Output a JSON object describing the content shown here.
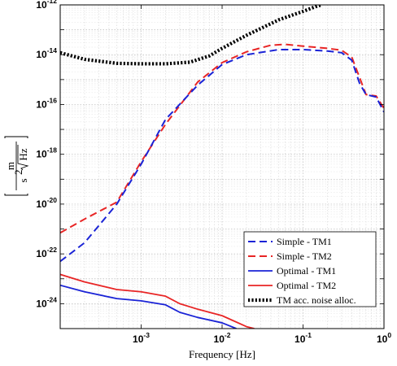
{
  "chart_data": {
    "type": "line",
    "xlabel": "Frequency [Hz]",
    "ylabel": {
      "numerator": "m",
      "denominator_prefix": "s",
      "denominator_sup": "2",
      "denominator_root": "Hz"
    },
    "xscale": "log",
    "yscale": "log",
    "xlim": [
      0.0001,
      1
    ],
    "ylim": [
      1e-25,
      1e-12
    ],
    "grid": true,
    "legend_position": "bottom-right",
    "x_ticks": [
      {
        "value": 0.001,
        "base": "10",
        "exp": "-3"
      },
      {
        "value": 0.01,
        "base": "10",
        "exp": "-2"
      },
      {
        "value": 0.1,
        "base": "10",
        "exp": "-1"
      },
      {
        "value": 1,
        "base": "10",
        "exp": "0"
      }
    ],
    "y_ticks": [
      {
        "value": 1e-24,
        "base": "10",
        "exp": "-24"
      },
      {
        "value": 1e-22,
        "base": "10",
        "exp": "-22"
      },
      {
        "value": 1e-20,
        "base": "10",
        "exp": "-20"
      },
      {
        "value": 1e-18,
        "base": "10",
        "exp": "-18"
      },
      {
        "value": 1e-16,
        "base": "10",
        "exp": "-16"
      },
      {
        "value": 1e-14,
        "base": "10",
        "exp": "-14"
      },
      {
        "value": 1e-12,
        "base": "10",
        "exp": "-12"
      }
    ],
    "series": [
      {
        "name": "Simple - TM1",
        "color": "#1a23d6",
        "style": "dashed",
        "points": [
          [
            0.0001,
            5e-23
          ],
          [
            0.0002,
            2.8e-22
          ],
          [
            0.0005,
            1e-20
          ],
          [
            0.001,
            4e-19
          ],
          [
            0.002,
            2.5e-17
          ],
          [
            0.005,
            6e-16
          ],
          [
            0.01,
            4e-15
          ],
          [
            0.02,
            1e-14
          ],
          [
            0.05,
            1.6e-14
          ],
          [
            0.1,
            1.6e-14
          ],
          [
            0.2,
            1.4e-14
          ],
          [
            0.3,
            1.2e-14
          ],
          [
            0.4,
            6e-15
          ],
          [
            0.5,
            7e-16
          ],
          [
            0.6,
            2.5e-16
          ],
          [
            0.8,
            2e-16
          ],
          [
            1,
            5e-17
          ]
        ]
      },
      {
        "name": "Simple - TM2",
        "color": "#e82525",
        "style": "dashed",
        "points": [
          [
            0.0001,
            7e-22
          ],
          [
            0.0002,
            2.5e-21
          ],
          [
            0.0005,
            1.2e-20
          ],
          [
            0.001,
            5e-19
          ],
          [
            0.002,
            1.6e-17
          ],
          [
            0.005,
            8e-16
          ],
          [
            0.01,
            4.8e-15
          ],
          [
            0.02,
            1.3e-14
          ],
          [
            0.04,
            2.4e-14
          ],
          [
            0.06,
            2.6e-14
          ],
          [
            0.1,
            2.2e-14
          ],
          [
            0.2,
            1.8e-14
          ],
          [
            0.3,
            1.5e-14
          ],
          [
            0.4,
            8e-15
          ],
          [
            0.5,
            1.2e-15
          ],
          [
            0.6,
            2.5e-16
          ],
          [
            0.8,
            2.2e-16
          ],
          [
            1,
            7e-17
          ]
        ]
      },
      {
        "name": "Optimal - TM1",
        "color": "#1a23d6",
        "style": "solid",
        "points": [
          [
            0.0001,
            5.5e-24
          ],
          [
            0.0002,
            3e-24
          ],
          [
            0.0005,
            1.6e-24
          ],
          [
            0.001,
            1.3e-24
          ],
          [
            0.002,
            9e-25
          ],
          [
            0.003,
            4.5e-25
          ],
          [
            0.005,
            2.8e-25
          ],
          [
            0.01,
            1.7e-25
          ],
          [
            0.015,
            1e-25
          ]
        ]
      },
      {
        "name": "Optimal - TM2",
        "color": "#e82525",
        "style": "solid",
        "points": [
          [
            0.0001,
            1.5e-23
          ],
          [
            0.0002,
            7.5e-24
          ],
          [
            0.0005,
            3.7e-24
          ],
          [
            0.001,
            3e-24
          ],
          [
            0.002,
            2e-24
          ],
          [
            0.003,
            1e-24
          ],
          [
            0.005,
            6e-25
          ],
          [
            0.01,
            3.3e-25
          ],
          [
            0.02,
            1.2e-25
          ],
          [
            0.025,
            1e-25
          ]
        ]
      },
      {
        "name": "TM acc. noise alloc.",
        "color": "#000000",
        "style": "dotted",
        "points": [
          [
            0.0001,
            1.2e-14
          ],
          [
            0.0002,
            6.5e-15
          ],
          [
            0.0005,
            4.5e-15
          ],
          [
            0.001,
            4.3e-15
          ],
          [
            0.002,
            4.3e-15
          ],
          [
            0.004,
            5e-15
          ],
          [
            0.007,
            9e-15
          ],
          [
            0.01,
            1.8e-14
          ],
          [
            0.02,
            6e-14
          ],
          [
            0.05,
            2.5e-13
          ],
          [
            0.1,
            5.5e-13
          ],
          [
            0.15,
            9e-13
          ],
          [
            0.17,
            1e-12
          ]
        ]
      }
    ]
  }
}
